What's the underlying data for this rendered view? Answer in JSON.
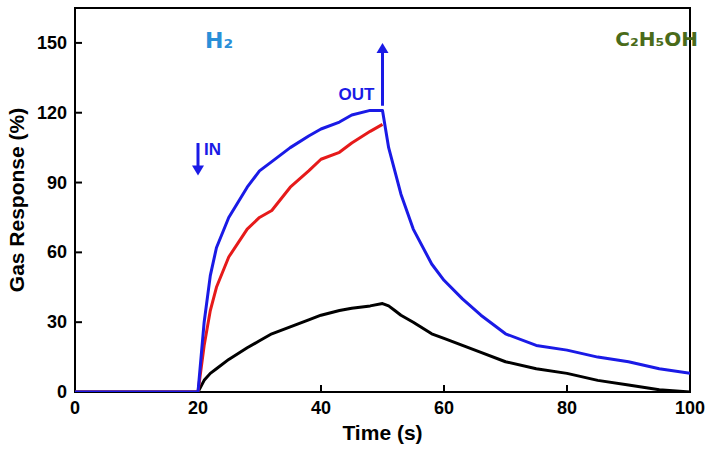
{
  "chart_data": {
    "type": "line",
    "x_label": "Time (s)",
    "y_label": "Gas Response (%)",
    "x": [
      0,
      10,
      20,
      21,
      22,
      23,
      25,
      28,
      30,
      32,
      35,
      38,
      40,
      43,
      45,
      48,
      50,
      51,
      52,
      53,
      55,
      58,
      60,
      63,
      66,
      70,
      75,
      80,
      85,
      90,
      95,
      100
    ],
    "series": [
      {
        "color": "#1a1ae6",
        "values": [
          0,
          0,
          0,
          30,
          50,
          62,
          75,
          88,
          95,
          99,
          105,
          110,
          113,
          116,
          119,
          121,
          121,
          105,
          95,
          85,
          70,
          55,
          48,
          40,
          33,
          25,
          20,
          18,
          15,
          13,
          10,
          8
        ]
      },
      {
        "color": "#e61a1a",
        "values": [
          0,
          0,
          0,
          20,
          35,
          45,
          58,
          70,
          75,
          78,
          88,
          95,
          100,
          103,
          107,
          112,
          115,
          null,
          null,
          null,
          null,
          null,
          null,
          null,
          null,
          null,
          null,
          null,
          null,
          null,
          null,
          null
        ]
      },
      {
        "color": "#000000",
        "values": [
          0,
          0,
          0,
          5,
          8,
          10,
          14,
          19,
          22,
          25,
          28,
          31,
          33,
          35,
          36,
          37,
          38,
          37,
          35,
          33,
          30,
          25,
          23,
          20,
          17,
          13,
          10,
          8,
          5,
          3,
          1,
          0
        ]
      }
    ],
    "xlim": [
      0,
      100
    ],
    "xticks": [
      0,
      20,
      40,
      60,
      80,
      100
    ],
    "ylim": [
      0,
      165
    ],
    "yticks": [
      0,
      30,
      60,
      90,
      120,
      150
    ],
    "annotations": [
      {
        "text": "IN",
        "x": 20,
        "y": 107,
        "to_y": 93,
        "color": "#1a1ae6"
      },
      {
        "text": "OUT",
        "x": 50,
        "y": 123,
        "to_y": 150,
        "color": "#1a1ae6"
      }
    ],
    "labels": [
      {
        "text": "H₂",
        "color": "#2a8fd8"
      },
      {
        "text": "C₂H₅OH",
        "color": "#4a6b1a"
      }
    ]
  }
}
